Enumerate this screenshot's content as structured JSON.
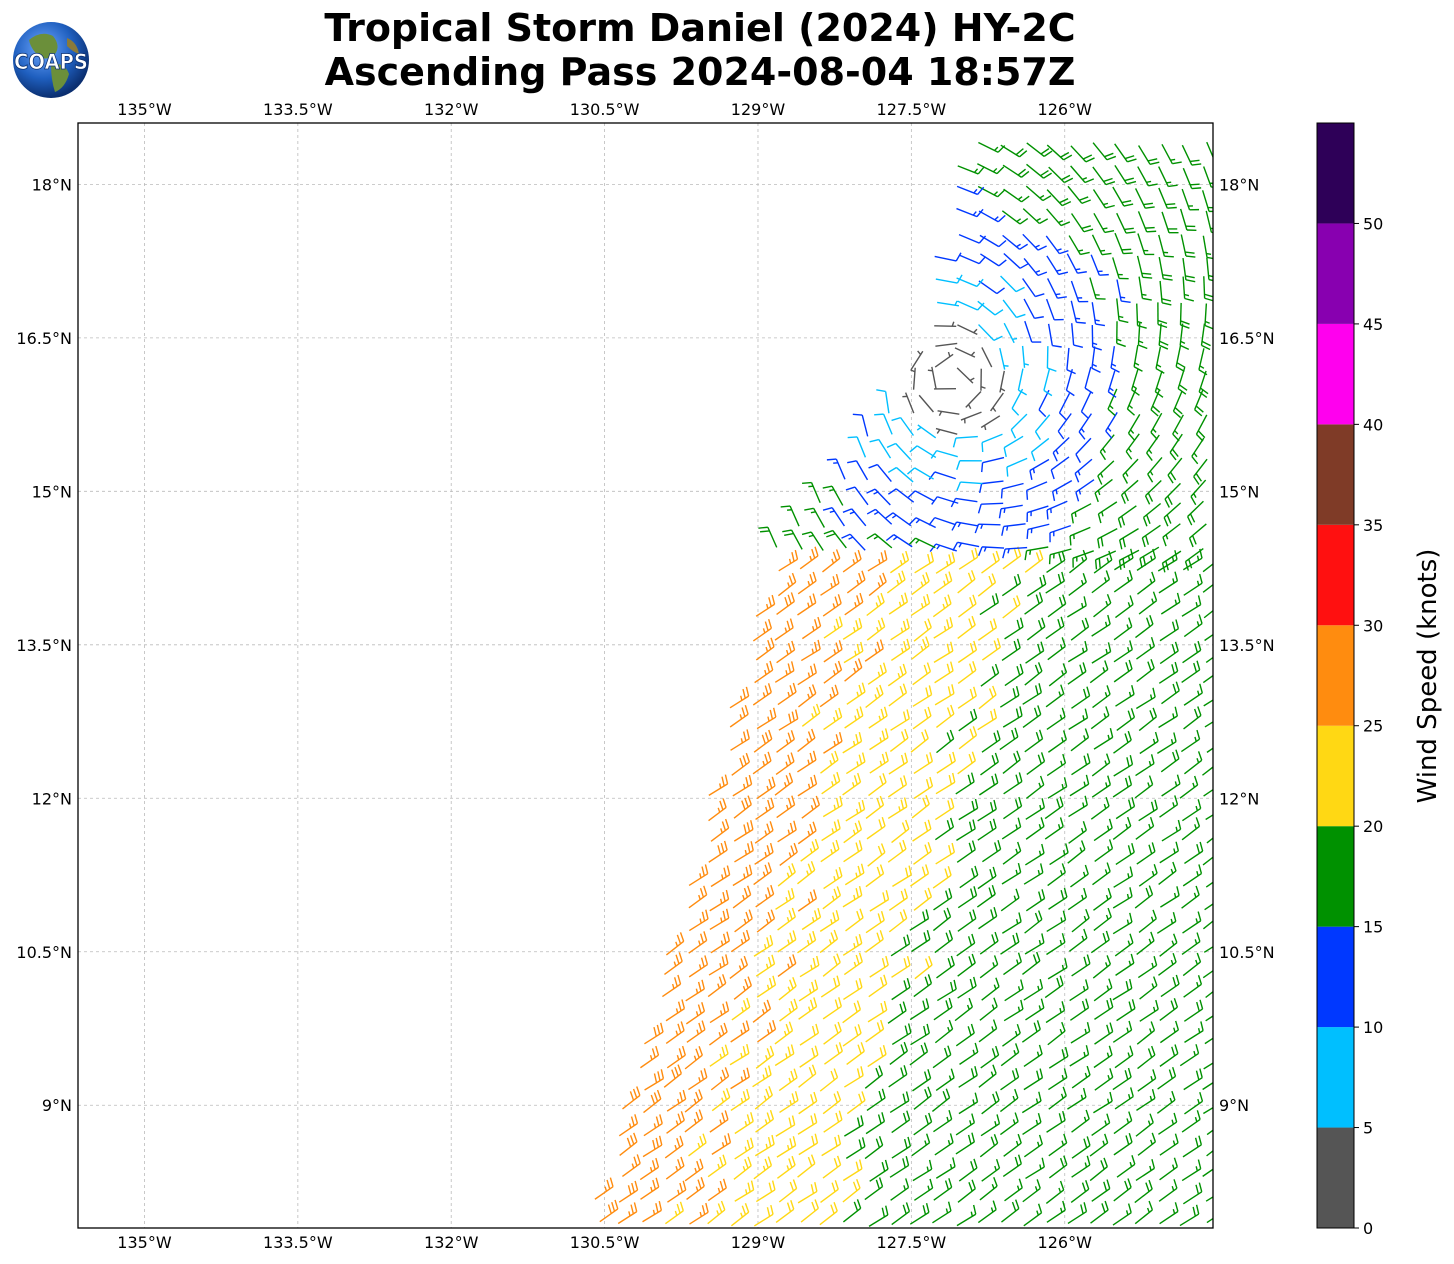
{
  "title": {
    "line1": "Tropical Storm Daniel (2024) HY-2C",
    "line2": "Ascending Pass 2024-08-04 18:57Z"
  },
  "logo": {
    "text": "COAPS"
  },
  "chart_data": {
    "type": "wind-barb-map",
    "title": "Tropical Storm Daniel (2024) HY-2C Ascending Pass 2024-08-04 18:57Z",
    "xlim": [
      -135.65,
      -124.55
    ],
    "ylim": [
      7.8,
      18.6
    ],
    "lon_ticks": [
      {
        "value": -135.0,
        "label": "135°W"
      },
      {
        "value": -133.5,
        "label": "133.5°W"
      },
      {
        "value": -132.0,
        "label": "132°W"
      },
      {
        "value": -130.5,
        "label": "130.5°W"
      },
      {
        "value": -129.0,
        "label": "129°W"
      },
      {
        "value": -127.5,
        "label": "127.5°W"
      },
      {
        "value": -126.0,
        "label": "126°W"
      }
    ],
    "lat_ticks": [
      {
        "value": 18.0,
        "label": "18°N"
      },
      {
        "value": 16.5,
        "label": "16.5°N"
      },
      {
        "value": 15.0,
        "label": "15°N"
      },
      {
        "value": 13.5,
        "label": "13.5°N"
      },
      {
        "value": 12.0,
        "label": "12°N"
      },
      {
        "value": 10.5,
        "label": "10.5°N"
      },
      {
        "value": 9.0,
        "label": "9°N"
      }
    ],
    "grid": true,
    "colorbar": {
      "label": "Wind Speed (knots)",
      "placement": "right",
      "bounds": [
        0,
        5,
        10,
        15,
        20,
        25,
        30,
        35,
        40,
        45,
        50,
        55
      ],
      "tick_labels": [
        "0",
        "5",
        "10",
        "15",
        "20",
        "25",
        "30",
        "35",
        "40",
        "45",
        "50"
      ],
      "colors": [
        "#555555",
        "#00bfff",
        "#0038ff",
        "#009100",
        "#ffd814",
        "#ff8c0f",
        "#ff1010",
        "#7f3b27",
        "#ff00ee",
        "#8800b0",
        "#2e0058"
      ]
    },
    "swath": {
      "east_edge_lon": -124.55,
      "west_edge": [
        [
          -130.7,
          7.8
        ],
        [
          -129.5,
          12.0
        ],
        [
          -128.9,
          14.5
        ],
        [
          -127.6,
          15.9
        ],
        [
          -127.0,
          18.6
        ]
      ],
      "grid_spacing_deg": 0.22
    },
    "calm_center": {
      "lat": 16.1,
      "lon": -127.1
    },
    "regimes": [
      {
        "name": "southern trade flow",
        "lat_range": [
          7.8,
          14.3
        ],
        "dir_from_deg": 55,
        "speed_range_kt": [
          15,
          28
        ]
      },
      {
        "name": "cyclonic circulation",
        "center": [
          -127.1,
          16.1
        ],
        "speed_range_kt": [
          0,
          15
        ]
      }
    ]
  }
}
